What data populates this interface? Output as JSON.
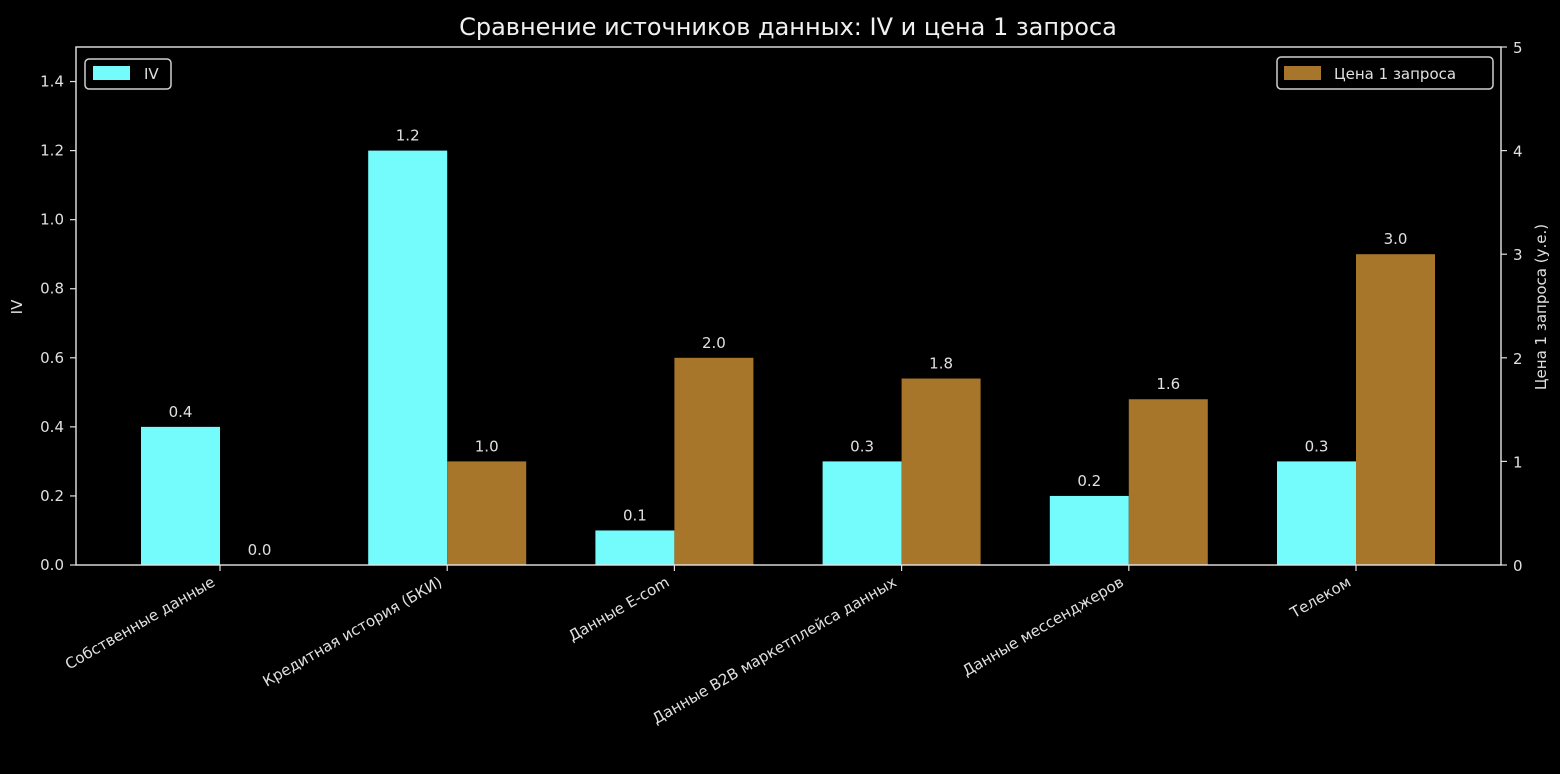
{
  "chart_data": {
    "type": "bar",
    "title": "Сравнение источников данных: IV и цена 1 запроса",
    "categories": [
      "Собственные данные",
      "Кредитная история (БКИ)",
      "Данные E-com",
      "Данные B2B маркетплейса данных",
      "Данные мессенджеров",
      "Телеком"
    ],
    "series": [
      {
        "name": "IV",
        "axis": "left",
        "color": "#74fbfc",
        "values": [
          0.4,
          1.2,
          0.1,
          0.3,
          0.2,
          0.3
        ],
        "labels": [
          "0.4",
          "1.2",
          "0.1",
          "0.3",
          "0.2",
          "0.3"
        ]
      },
      {
        "name": "Цена 1 запроса",
        "axis": "right",
        "color": "#a8762b",
        "values": [
          0.0,
          1.0,
          2.0,
          1.8,
          1.6,
          3.0
        ],
        "labels": [
          "0.0",
          "1.0",
          "2.0",
          "1.8",
          "1.6",
          "3.0"
        ]
      }
    ],
    "xlabel": "",
    "ylabel": "IV",
    "ylabel_right": "Цена 1 запроса (у.е.)",
    "ylim": [
      0,
      1.5
    ],
    "ylim_right": [
      0,
      5
    ],
    "yticks": [
      "0.0",
      "0.2",
      "0.4",
      "0.6",
      "0.8",
      "1.0",
      "1.2",
      "1.4"
    ],
    "yticks_right": [
      "0",
      "1",
      "2",
      "3",
      "4",
      "5"
    ],
    "grid": false,
    "legend": [
      {
        "label": "IV",
        "position": "upper left"
      },
      {
        "label": "Цена 1 запроса",
        "position": "upper right"
      }
    ],
    "background": "#000000"
  }
}
